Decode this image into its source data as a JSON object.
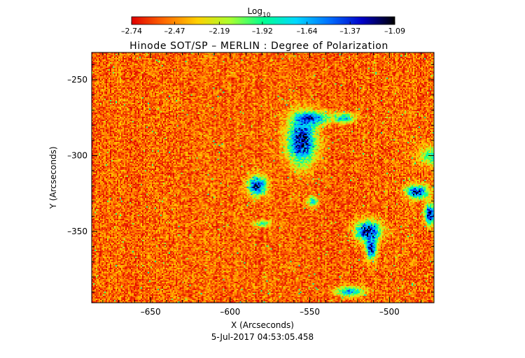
{
  "chart_data": {
    "type": "heatmap",
    "title": "Hinode SOT/SP – MERLIN : Degree of Polarization",
    "xlabel": "X (Arcseconds)",
    "ylabel": "Y (Arcseconds)",
    "date_label": "5-Jul-2017 04:53:05.458",
    "xlim": [
      -687,
      -472
    ],
    "ylim": [
      -397,
      -232
    ],
    "x_ticks": [
      -650,
      -600,
      -550,
      -500
    ],
    "x_tick_labels": [
      "–650",
      "–600",
      "–550",
      "–500"
    ],
    "y_ticks": [
      -250,
      -300,
      -350
    ],
    "y_tick_labels": [
      "–250",
      "–300",
      "–350"
    ],
    "colorbar": {
      "label_base": "Log",
      "label_sub": "10",
      "range": [
        -2.74,
        -1.09
      ],
      "tick_values": [
        -2.74,
        -2.47,
        -2.19,
        -1.92,
        -1.64,
        -1.37,
        -1.09
      ],
      "tick_labels": [
        "–2.74",
        "–2.47",
        "–2.19",
        "–1.92",
        "–1.64",
        "–1.37",
        "–1.09"
      ],
      "colormap": [
        "#e00000",
        "#ff6a00",
        "#ffd000",
        "#a8ff30",
        "#00ff90",
        "#00d8ff",
        "#0070ff",
        "#0000c8",
        "#000000"
      ]
    },
    "field": {
      "background_level": 0.12,
      "active_regions": [
        {
          "x": -555,
          "y": -290,
          "rx": 8,
          "ry": 14,
          "peak": 0.9
        },
        {
          "x": -548,
          "y": -275,
          "rx": 10,
          "ry": 4,
          "peak": 0.6
        },
        {
          "x": -528,
          "y": -275,
          "rx": 6,
          "ry": 3,
          "peak": 0.55
        },
        {
          "x": -583,
          "y": -320,
          "rx": 5,
          "ry": 6,
          "peak": 0.85
        },
        {
          "x": -513,
          "y": -350,
          "rx": 7,
          "ry": 6,
          "peak": 0.9
        },
        {
          "x": -511,
          "y": -362,
          "rx": 3,
          "ry": 6,
          "peak": 0.85
        },
        {
          "x": -482,
          "y": -324,
          "rx": 6,
          "ry": 4,
          "peak": 0.85
        },
        {
          "x": -474,
          "y": -339,
          "rx": 3,
          "ry": 6,
          "peak": 0.9
        },
        {
          "x": -548,
          "y": -330,
          "rx": 3,
          "ry": 3,
          "peak": 0.55
        },
        {
          "x": -580,
          "y": -345,
          "rx": 5,
          "ry": 2,
          "peak": 0.45
        },
        {
          "x": -525,
          "y": -390,
          "rx": 8,
          "ry": 3,
          "peak": 0.6
        },
        {
          "x": -472,
          "y": -300,
          "rx": 8,
          "ry": 6,
          "peak": 0.4
        }
      ]
    }
  }
}
